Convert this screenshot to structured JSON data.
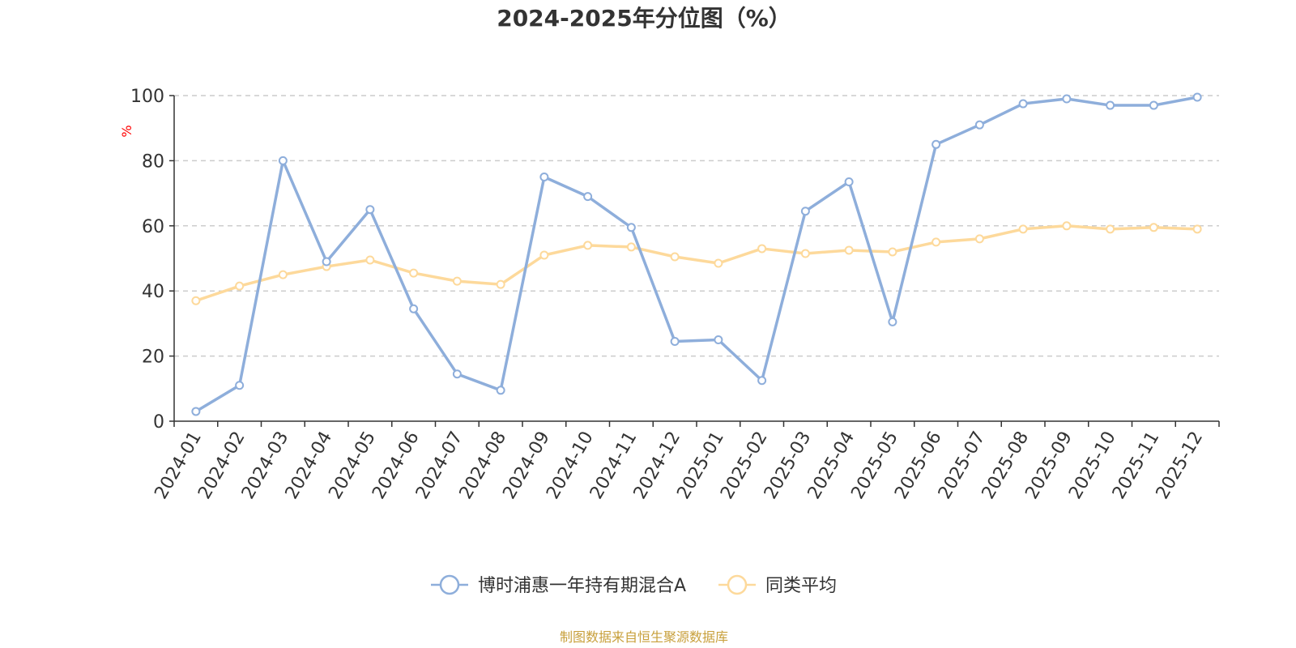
{
  "chart_data": {
    "type": "line",
    "title": "2024-2025年分位图（%）",
    "ylabel": "%",
    "xlabel": "",
    "ylim": [
      0,
      100
    ],
    "yticks": [
      0,
      20,
      40,
      60,
      80,
      100
    ],
    "grid": true,
    "legend_position": "bottom",
    "categories": [
      "2024-01",
      "2024-02",
      "2024-03",
      "2024-04",
      "2024-05",
      "2024-06",
      "2024-07",
      "2024-08",
      "2024-09",
      "2024-10",
      "2024-11",
      "2024-12",
      "2025-01",
      "2025-02",
      "2025-03",
      "2025-04",
      "2025-05",
      "2025-06",
      "2025-07",
      "2025-08",
      "2025-09",
      "2025-10",
      "2025-11",
      "2025-12"
    ],
    "series": [
      {
        "name": "博时浦惠一年持有期混合A",
        "color": "#8eaedb",
        "values": [
          3,
          11,
          80,
          49,
          65,
          34.5,
          14.5,
          9.5,
          75,
          69,
          59.5,
          24.5,
          25,
          12.5,
          64.5,
          73.5,
          30.5,
          85,
          91,
          97.5,
          99,
          97,
          97,
          99.5
        ]
      },
      {
        "name": "同类平均",
        "color": "#fdd99b",
        "values": [
          37,
          41.5,
          45,
          47.5,
          49.5,
          45.5,
          43,
          42,
          51,
          54,
          53.5,
          50.5,
          48.5,
          53,
          51.5,
          52.5,
          52,
          55,
          56,
          59,
          60,
          59,
          59.5,
          59
        ]
      }
    ],
    "unit_color": "#ff0000",
    "source": {
      "text": "制图数据来自恒生聚源数据库",
      "color": "#c8a03c"
    }
  }
}
